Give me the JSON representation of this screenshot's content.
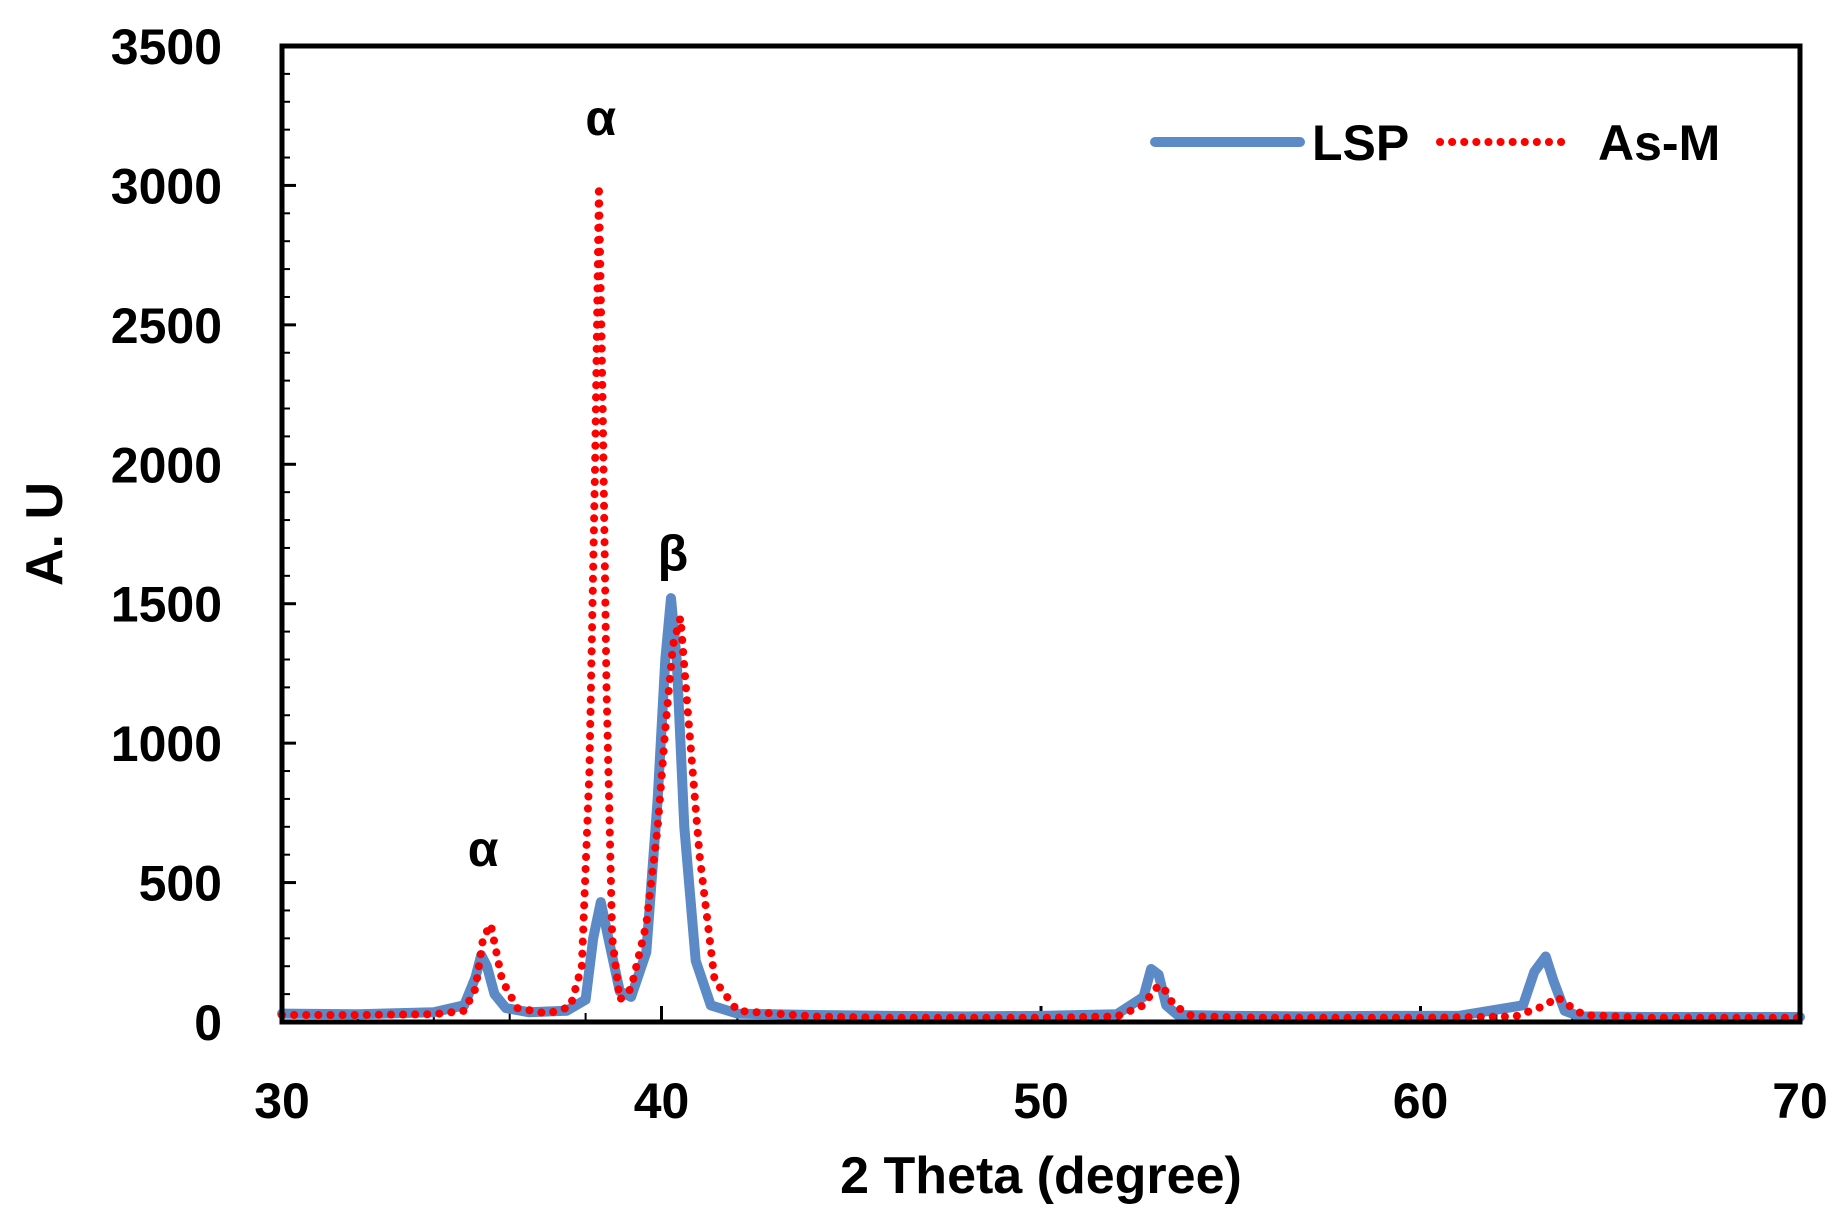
{
  "chart_data": {
    "type": "line",
    "title": "",
    "xlabel": "2 Theta (degree)",
    "ylabel": "A. U",
    "xlim": [
      30,
      70
    ],
    "ylim": [
      0,
      3500
    ],
    "x_ticks": [
      "30",
      "40",
      "50",
      "60",
      "70"
    ],
    "y_ticks": [
      "0",
      "500",
      "1000",
      "1500",
      "2000",
      "2500",
      "3000",
      "3500"
    ],
    "grid": false,
    "legend_position": "top-right",
    "colors": {
      "LSP": "#5b8ac6",
      "As-M": "#ff0000"
    },
    "series": [
      {
        "name": "LSP",
        "style": "solid",
        "x": [
          30,
          32,
          34,
          34.8,
          35.1,
          35.25,
          35.4,
          35.6,
          35.9,
          36.5,
          37.5,
          38,
          38.2,
          38.4,
          38.6,
          38.9,
          39.2,
          39.6,
          39.9,
          40.1,
          40.25,
          40.4,
          40.6,
          40.9,
          41.3,
          42,
          44,
          46,
          48,
          50,
          52,
          52.7,
          52.9,
          53.1,
          53.3,
          53.6,
          55,
          57,
          59,
          61,
          62.7,
          63,
          63.3,
          63.5,
          63.8,
          64.2,
          66,
          68,
          70
        ],
        "y": [
          30,
          28,
          35,
          60,
          160,
          240,
          200,
          100,
          50,
          35,
          40,
          80,
          300,
          430,
          300,
          110,
          90,
          250,
          800,
          1300,
          1520,
          1300,
          700,
          220,
          60,
          30,
          25,
          22,
          20,
          22,
          28,
          90,
          190,
          170,
          60,
          25,
          22,
          20,
          22,
          22,
          60,
          180,
          235,
          150,
          40,
          20,
          18,
          18,
          18
        ]
      },
      {
        "name": "As-M",
        "style": "dotted",
        "x": [
          30,
          32,
          34,
          34.8,
          35.1,
          35.3,
          35.5,
          35.8,
          36.2,
          37,
          37.6,
          37.9,
          38.1,
          38.25,
          38.35,
          38.45,
          38.55,
          38.7,
          38.9,
          39.2,
          39.6,
          39.9,
          40.1,
          40.3,
          40.5,
          40.7,
          41,
          41.4,
          42,
          44,
          46,
          48,
          50,
          52,
          52.7,
          53,
          53.2,
          53.5,
          54,
          56,
          58,
          60,
          62.5,
          63.3,
          63.6,
          63.9,
          64.3,
          66,
          68,
          70
        ],
        "y": [
          25,
          25,
          28,
          40,
          120,
          300,
          350,
          150,
          50,
          30,
          55,
          200,
          900,
          2000,
          3000,
          2200,
          1200,
          300,
          80,
          120,
          350,
          700,
          1050,
          1350,
          1450,
          1100,
          600,
          150,
          40,
          20,
          15,
          15,
          15,
          20,
          60,
          120,
          130,
          60,
          20,
          15,
          15,
          15,
          20,
          60,
          90,
          60,
          25,
          15,
          15,
          15
        ]
      }
    ],
    "annotations": [
      {
        "text": "α",
        "x": 35.3,
        "y": 560
      },
      {
        "text": "α",
        "x": 38.4,
        "y": 3180
      },
      {
        "text": "β",
        "x": 40.3,
        "y": 1620
      }
    ]
  }
}
